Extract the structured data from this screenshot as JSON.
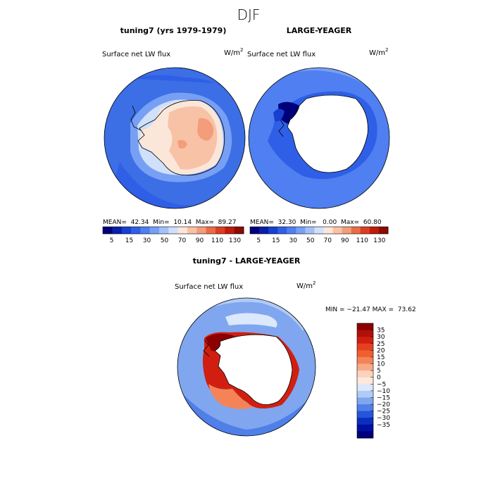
{
  "figure": {
    "title": "DJF",
    "left_title": "tuning7 (yrs 1979-1979)",
    "right_title": "LARGE-YEAGER",
    "diff_title": "tuning7 - LARGE-YEAGER"
  },
  "chart_data": [
    {
      "type": "heatmap",
      "projection": "south-polar-stereographic",
      "title": "tuning7 (yrs 1979-1979)",
      "variable": "Surface net LW flux",
      "units": "W/m",
      "units_exp": "2",
      "stats": {
        "mean": "42.34",
        "min": "10.14",
        "max": "89.27"
      },
      "stats_text": "MEAN=  42.34  Min=  10.14  Max=  89.27",
      "colorbar": {
        "ticks": [
          "5",
          "15",
          "30",
          "50",
          "70",
          "90",
          "110",
          "130"
        ],
        "colors": [
          "#00007a",
          "#0a1ea8",
          "#1840d0",
          "#2e5fe6",
          "#4f7ff0",
          "#779ff4",
          "#a4c0f8",
          "#cfe0fa",
          "#fbe6da",
          "#f8c2a6",
          "#f39d7a",
          "#ea6b48",
          "#dd3d20",
          "#c01a0a",
          "#8a0a04"
        ]
      },
      "regions": {
        "open_ocean": "#3c6ee6",
        "coast": "#a4c0f8",
        "ice_shelf": "#f8c2a6",
        "interior": "#f39d7a"
      }
    },
    {
      "type": "heatmap",
      "projection": "south-polar-stereographic",
      "title": "LARGE-YEAGER",
      "variable": "Surface net LW flux",
      "units": "W/m",
      "units_exp": "2",
      "stats": {
        "mean": "32.30",
        "min": "0.00",
        "max": "60.80"
      },
      "stats_text": "MEAN=  32.30  Min=   0.00  Max=  60.80",
      "colorbar": {
        "ticks": [
          "5",
          "15",
          "30",
          "50",
          "70",
          "90",
          "110",
          "130"
        ],
        "colors": [
          "#00007a",
          "#0a1ea8",
          "#1840d0",
          "#2e5fe6",
          "#4f7ff0",
          "#779ff4",
          "#a4c0f8",
          "#cfe0fa",
          "#fbe6da",
          "#f8c2a6",
          "#f39d7a",
          "#ea6b48",
          "#dd3d20",
          "#c01a0a",
          "#8a0a04"
        ]
      },
      "regions": {
        "open_ocean": "#4f7ff0",
        "coast": "#1840d0",
        "land_masked": "#ffffff"
      }
    },
    {
      "type": "heatmap",
      "projection": "south-polar-stereographic",
      "title": "tuning7 - LARGE-YEAGER",
      "variable": "Surface net LW flux",
      "units": "W/m",
      "units_exp": "2",
      "stats": {
        "min": "-21.47",
        "max": "73.62"
      },
      "stats_text": "MIN = −21.47 MAX =  73.62",
      "colorbar": {
        "orientation": "vertical",
        "ticks": [
          "35",
          "30",
          "25",
          "20",
          "15",
          "10",
          "5",
          "0",
          "−5",
          "−10",
          "−15",
          "−20",
          "−25",
          "−30",
          "−35"
        ],
        "colors": [
          "#8b0000",
          "#b01008",
          "#d01f10",
          "#e64020",
          "#f0602e",
          "#f48458",
          "#f8aa88",
          "#fcd2bc",
          "#fde8dc",
          "#dce8fb",
          "#b0cbf6",
          "#80a6f0",
          "#4f7fe8",
          "#2555d8",
          "#0a2ec0",
          "#0010a0",
          "#00007a"
        ]
      },
      "regions": {
        "open_ocean": "#80a6f0",
        "positive_ring": "#d01f10",
        "land_masked": "#ffffff"
      }
    }
  ]
}
